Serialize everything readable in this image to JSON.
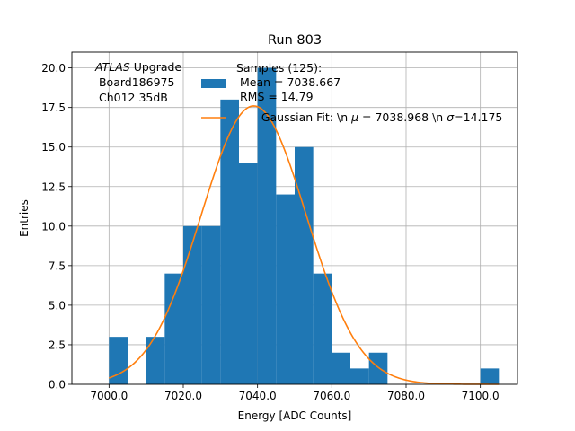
{
  "chart_data": {
    "type": "bar",
    "title": "Run 803",
    "xlabel": "Energy [ADC Counts]",
    "ylabel": "Entries",
    "xlim": [
      6990,
      7110
    ],
    "ylim": [
      0,
      21
    ],
    "grid": true,
    "xticks": [
      7000,
      7020,
      7040,
      7060,
      7080,
      7100
    ],
    "xtick_labels": [
      "7000.0",
      "7020.0",
      "7040.0",
      "7060.0",
      "7080.0",
      "7100.0"
    ],
    "yticks": [
      0,
      2.5,
      5,
      7.5,
      10,
      12.5,
      15,
      17.5,
      20
    ],
    "ytick_labels": [
      "0.0",
      "2.5",
      "5.0",
      "7.5",
      "10.0",
      "12.5",
      "15.0",
      "17.5",
      "20.0"
    ],
    "bin_width": 5,
    "bins": [
      {
        "x": 7000,
        "count": 3
      },
      {
        "x": 7005,
        "count": 0
      },
      {
        "x": 7010,
        "count": 3
      },
      {
        "x": 7015,
        "count": 7
      },
      {
        "x": 7020,
        "count": 10
      },
      {
        "x": 7025,
        "count": 10
      },
      {
        "x": 7030,
        "count": 18
      },
      {
        "x": 7035,
        "count": 14
      },
      {
        "x": 7040,
        "count": 20
      },
      {
        "x": 7045,
        "count": 12
      },
      {
        "x": 7050,
        "count": 15
      },
      {
        "x": 7055,
        "count": 7
      },
      {
        "x": 7060,
        "count": 2
      },
      {
        "x": 7065,
        "count": 1
      },
      {
        "x": 7070,
        "count": 2
      },
      {
        "x": 7075,
        "count": 0
      },
      {
        "x": 7080,
        "count": 0
      },
      {
        "x": 7085,
        "count": 0
      },
      {
        "x": 7090,
        "count": 0
      },
      {
        "x": 7095,
        "count": 0
      },
      {
        "x": 7100,
        "count": 1
      }
    ],
    "fit": {
      "amplitude": 17.6,
      "mean": 7038.968,
      "sigma": 14.175,
      "x_range": [
        7000,
        7105
      ]
    },
    "series": [
      {
        "legend_label_lines": [
          "Samples (125):",
          " Mean = 7038.667",
          " RMS = 14.79"
        ]
      },
      {
        "legend_label": "Gaussian Fit: \\n $\\mu$ = 7038.968 \\n $\\sigma$=14.175"
      }
    ],
    "annotation": {
      "italic": "ATLAS",
      "rest": " Upgrade",
      "line2": " Board186975",
      "line3": " Ch012 35dB"
    },
    "legend_placement": "top-right",
    "colors": {
      "bars": "#1f77b4",
      "fit": "#ff7f0e",
      "grid": "#b0b0b0"
    }
  }
}
